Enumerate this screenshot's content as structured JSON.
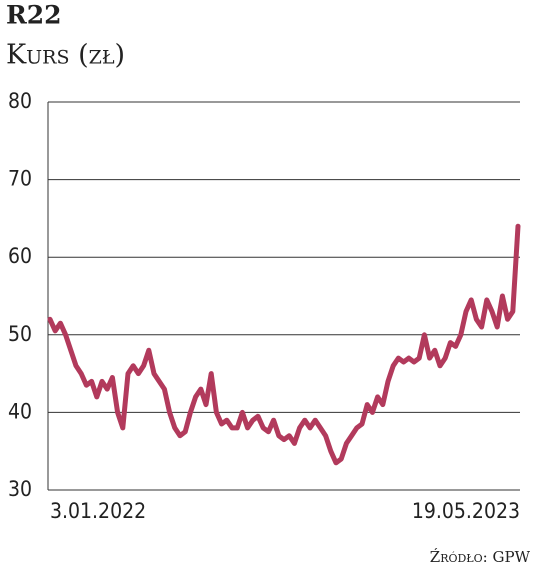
{
  "chart_data": {
    "type": "line",
    "title": "R22",
    "subtitle": "Kurs (zł)",
    "source": "Źródło: GPW",
    "categories": [
      "3.01.2022",
      null,
      null,
      null,
      null,
      null,
      null,
      null,
      null,
      null,
      null,
      null,
      null,
      null,
      null,
      null,
      null,
      null,
      null,
      null,
      null,
      null,
      null,
      null,
      null,
      null,
      null,
      null,
      null,
      null,
      null,
      null,
      null,
      null,
      null,
      null,
      null,
      null,
      null,
      null,
      null,
      null,
      null,
      null,
      null,
      null,
      null,
      null,
      null,
      null,
      null,
      null,
      null,
      null,
      null,
      null,
      null,
      null,
      null,
      null,
      null,
      null,
      null,
      null,
      null,
      null,
      null,
      null,
      null,
      null,
      null,
      null,
      null,
      null,
      null,
      null,
      null,
      null,
      null,
      null,
      null,
      null,
      null,
      null,
      null,
      null,
      null,
      null,
      null,
      null,
      "19.05.2023"
    ],
    "values": [
      52,
      50.5,
      51.5,
      50,
      48,
      46,
      45,
      43.5,
      44,
      42,
      44,
      43,
      44.5,
      40,
      38,
      45,
      46,
      45,
      46,
      48,
      45,
      44,
      43,
      40,
      38,
      37,
      37.5,
      40,
      42,
      43,
      41,
      45,
      40,
      38.5,
      39,
      38,
      38,
      40,
      38,
      39,
      39.5,
      38,
      37.5,
      39,
      37,
      36.5,
      37,
      36,
      38,
      39,
      38,
      39,
      38,
      37,
      35,
      33.5,
      34,
      36,
      37,
      38,
      38.5,
      41,
      40,
      42,
      41,
      44,
      46,
      47,
      46.5,
      47,
      46.5,
      47,
      50,
      47,
      48,
      46,
      47,
      49,
      48.5,
      50,
      53,
      54.5,
      52,
      51,
      54.5,
      53,
      51,
      55,
      52,
      53,
      64
    ],
    "color": "#b23a5c",
    "ylim": [
      30,
      80
    ],
    "yticks": [
      30,
      40,
      50,
      60,
      70,
      80
    ],
    "grid": true
  }
}
